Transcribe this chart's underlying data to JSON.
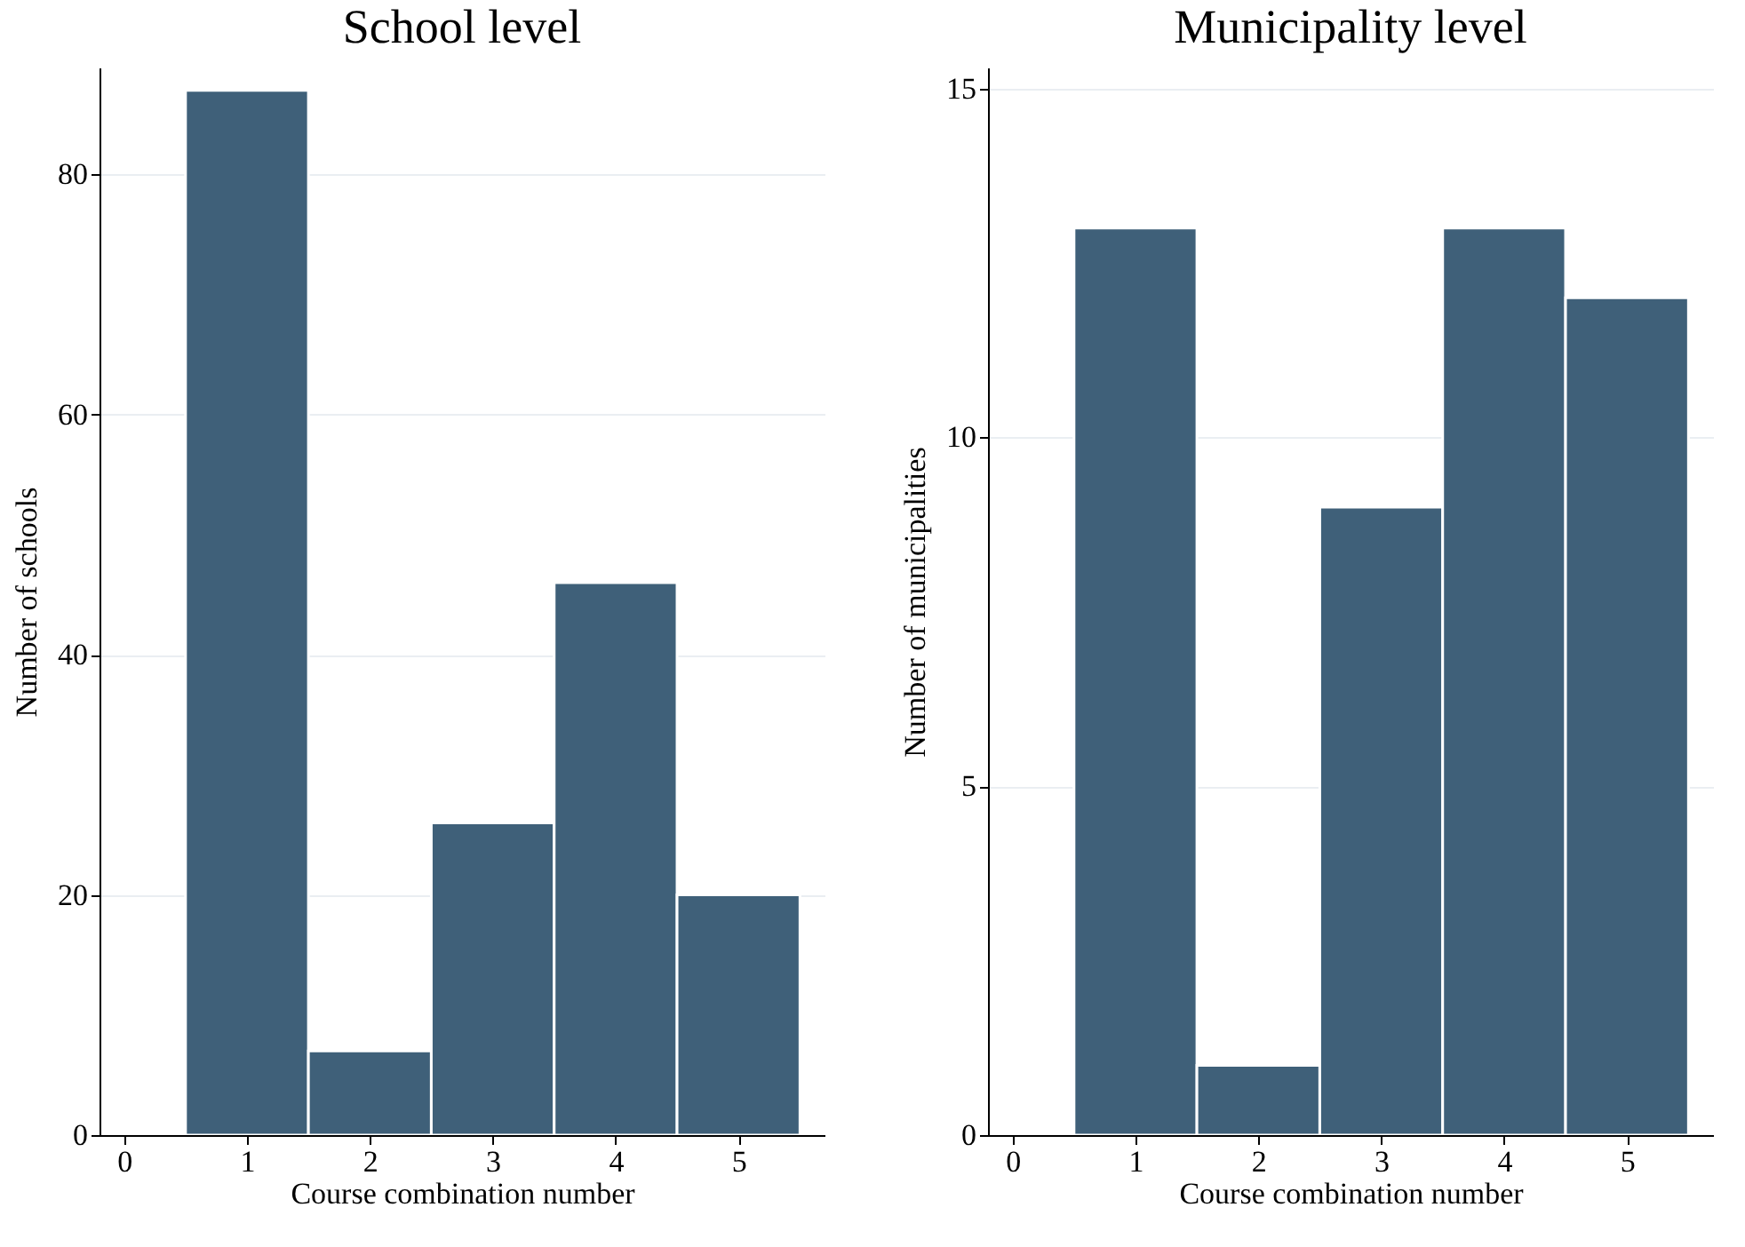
{
  "chart_data": [
    {
      "type": "histogram",
      "title": "School level",
      "xlabel": "Course combination number",
      "ylabel": "Number of schools",
      "bins": [
        0.5,
        1.5,
        2.5,
        3.5,
        4.5,
        5.5
      ],
      "values": [
        87,
        7,
        26,
        46,
        20
      ],
      "color": "#3f6079",
      "xlim": [
        -0.2,
        5.7
      ],
      "xticks": [
        0,
        1,
        2,
        3,
        4,
        5
      ],
      "ylim": [
        0,
        88.9
      ],
      "yticks": [
        0,
        20,
        40,
        60,
        80
      ],
      "grid": "y"
    },
    {
      "type": "histogram",
      "title": "Municipality level",
      "xlabel": "Course combination number",
      "ylabel": "Number of municipalities",
      "bins": [
        0.5,
        1.5,
        2.5,
        3.5,
        4.5,
        5.5
      ],
      "values": [
        13,
        1,
        9,
        13,
        12
      ],
      "color": "#3f6079",
      "xlim": [
        -0.2,
        5.7
      ],
      "xticks": [
        0,
        1,
        2,
        3,
        4,
        5
      ],
      "ylim": [
        0,
        15.3
      ],
      "yticks": [
        0,
        5,
        10,
        15
      ],
      "grid": "y"
    }
  ]
}
